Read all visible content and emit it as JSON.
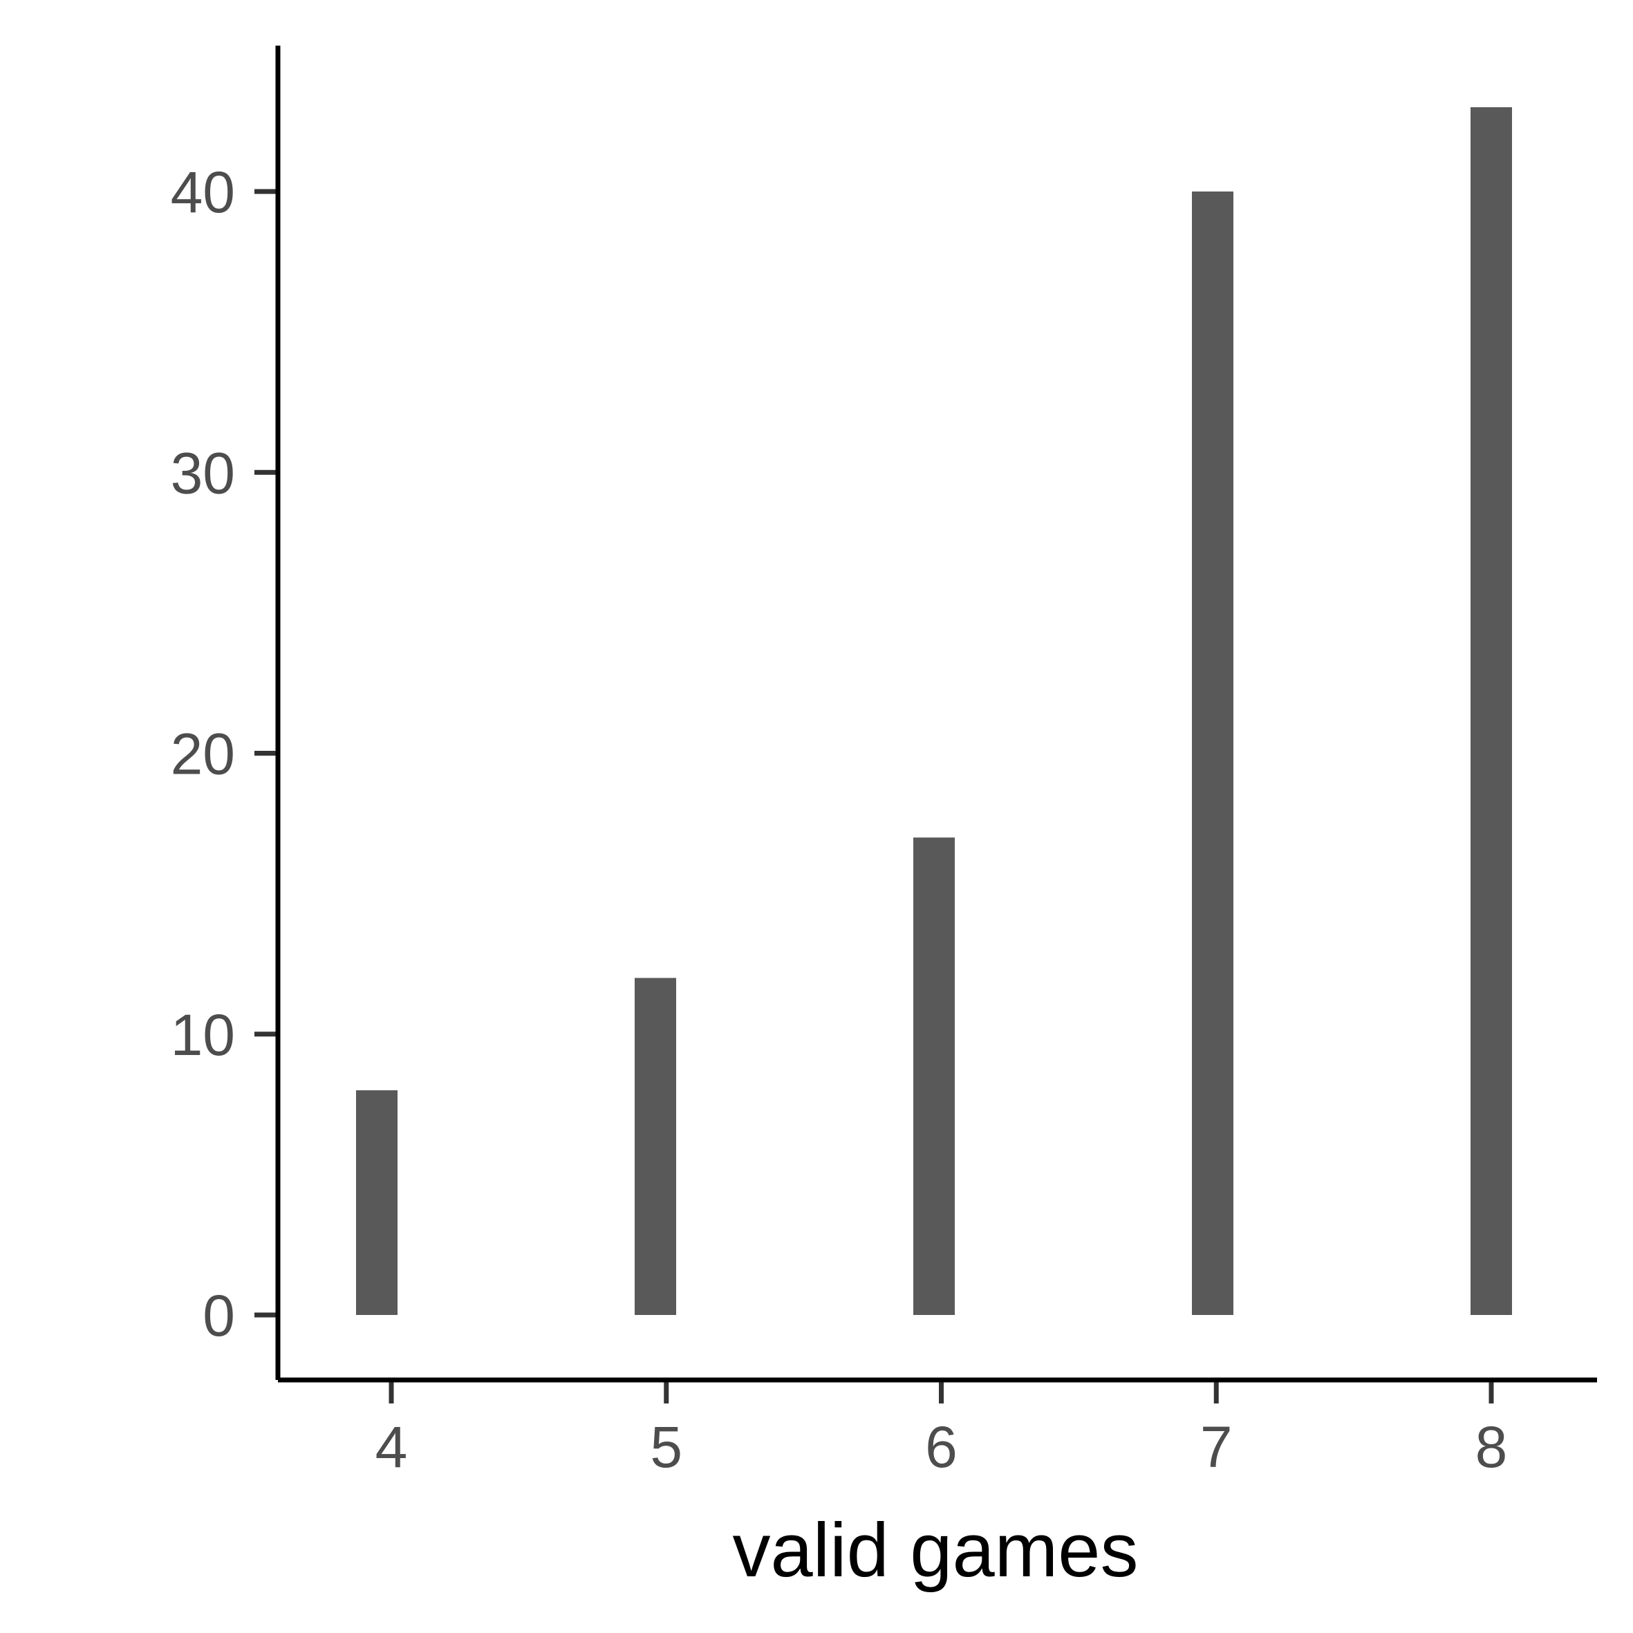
{
  "chart_data": {
    "type": "bar",
    "title": "",
    "xlabel": "valid games",
    "ylabel": "",
    "categories": [
      "4",
      "5",
      "6",
      "7",
      "8"
    ],
    "x_ticks": [
      "4",
      "5",
      "6",
      "7",
      "8"
    ],
    "values": [
      8,
      12,
      17,
      40,
      43
    ],
    "y_ticks": [
      "0",
      "10",
      "20",
      "30",
      "40"
    ],
    "ylim": [
      -2,
      45
    ],
    "grid": false,
    "legend": "none",
    "colors": {
      "bar": "#595959",
      "axis": "#000000",
      "tick": "#333333",
      "tick_label": "#4d4d4d"
    }
  }
}
